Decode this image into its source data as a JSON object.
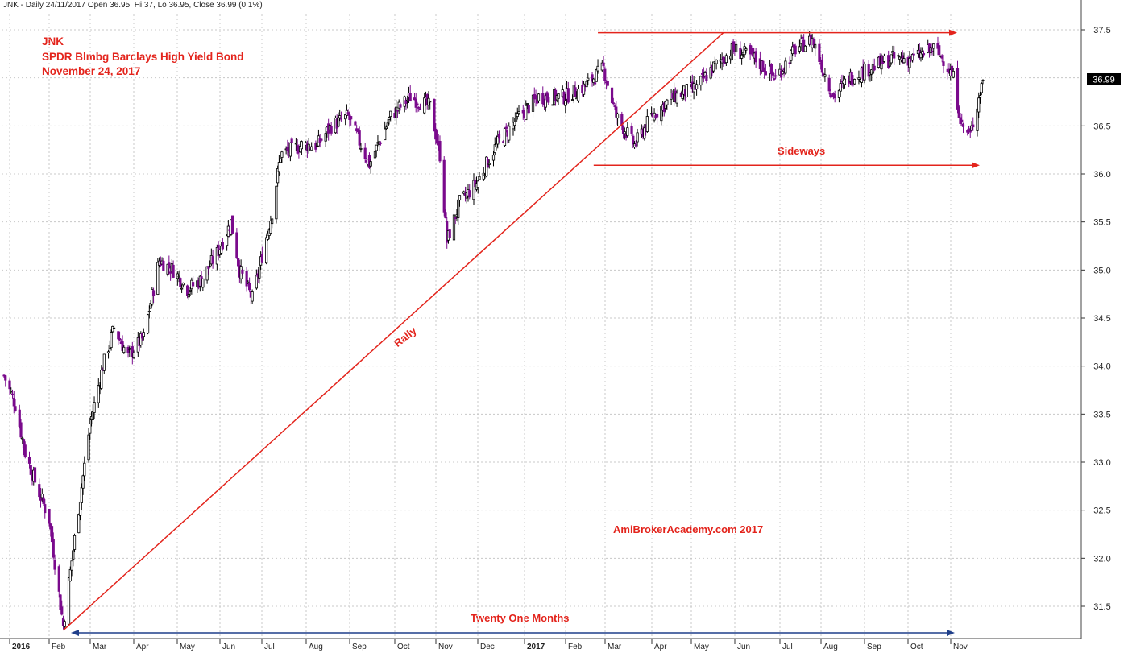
{
  "header": "JNK - Daily 24/11/2017 Open 36.95, Hi 37, Lo 36.95, Close 36.99 (0.1%)",
  "titles": [
    "JNK",
    "SPDR Blmbg Barclays High Yield Bond",
    "November 24, 2017"
  ],
  "annotations": {
    "rally": "Rally",
    "sideways": "Sideways",
    "duration": "Twenty One Months",
    "watermark": "AmiBrokerAcademy.com 2017"
  },
  "last_price_label": "36.99",
  "colors": {
    "up": "#000000",
    "down": "#7a0a8c",
    "annotation": "#e3241c",
    "duration_line": "#1f3f8a",
    "grid": "#c8c8c8",
    "price_box": "#000000"
  },
  "chart_data": {
    "type": "candlestick",
    "symbol": "JNK",
    "title": "SPDR Blmbg Barclays High Yield Bond",
    "subtitle": "November 24, 2017",
    "ylim": [
      31.2,
      37.65
    ],
    "yticks": [
      31.5,
      32.0,
      32.5,
      33.0,
      33.5,
      34.0,
      34.5,
      35.0,
      35.5,
      36.0,
      36.5,
      37.5
    ],
    "xticks": [
      "2016",
      "Feb",
      "Mar",
      "Apr",
      "May",
      "Jun",
      "Jul",
      "Aug",
      "Sep",
      "Oct",
      "Nov",
      "Dec",
      "2017",
      "Feb",
      "Mar",
      "Apr",
      "May",
      "Jun",
      "Jul",
      "Aug",
      "Sep",
      "Oct",
      "Nov"
    ],
    "grid": true,
    "last": {
      "open": 36.95,
      "high": 37.0,
      "low": 36.95,
      "close": 36.99,
      "change_pct": 0.1
    },
    "price_path": [
      [
        "2015-12-31",
        33.9
      ],
      [
        "2016-01-08",
        33.6
      ],
      [
        "2016-01-15",
        33.1
      ],
      [
        "2016-01-22",
        32.8
      ],
      [
        "2016-02-01",
        32.4
      ],
      [
        "2016-02-11",
        31.3
      ],
      [
        "2016-02-19",
        32.2
      ],
      [
        "2016-03-01",
        33.4
      ],
      [
        "2016-03-10",
        34.0
      ],
      [
        "2016-03-18",
        34.4
      ],
      [
        "2016-03-28",
        34.1
      ],
      [
        "2016-04-08",
        34.3
      ],
      [
        "2016-04-19",
        35.1
      ],
      [
        "2016-04-29",
        35.0
      ],
      [
        "2016-05-09",
        34.8
      ],
      [
        "2016-05-19",
        34.9
      ],
      [
        "2016-05-31",
        35.2
      ],
      [
        "2016-06-09",
        35.5
      ],
      [
        "2016-06-15",
        35.0
      ],
      [
        "2016-06-24",
        34.7
      ],
      [
        "2016-07-08",
        35.6
      ],
      [
        "2016-07-14",
        36.2
      ],
      [
        "2016-07-29",
        36.3
      ],
      [
        "2016-08-09",
        36.3
      ],
      [
        "2016-08-19",
        36.5
      ],
      [
        "2016-08-31",
        36.6
      ],
      [
        "2016-09-09",
        36.3
      ],
      [
        "2016-09-15",
        36.1
      ],
      [
        "2016-09-30",
        36.6
      ],
      [
        "2016-10-14",
        36.8
      ],
      [
        "2016-10-28",
        36.7
      ],
      [
        "2016-11-04",
        36.2
      ],
      [
        "2016-11-09",
        35.3
      ],
      [
        "2016-11-18",
        35.7
      ],
      [
        "2016-11-30",
        35.9
      ],
      [
        "2016-12-14",
        36.3
      ],
      [
        "2016-12-30",
        36.6
      ],
      [
        "2017-01-13",
        36.8
      ],
      [
        "2017-01-31",
        36.8
      ],
      [
        "2017-02-14",
        36.9
      ],
      [
        "2017-02-28",
        37.1
      ],
      [
        "2017-03-09",
        36.6
      ],
      [
        "2017-03-22",
        36.3
      ],
      [
        "2017-04-03",
        36.6
      ],
      [
        "2017-04-18",
        36.8
      ],
      [
        "2017-05-05",
        36.9
      ],
      [
        "2017-05-16",
        37.1
      ],
      [
        "2017-05-31",
        37.3
      ],
      [
        "2017-06-15",
        37.2
      ],
      [
        "2017-06-30",
        37.0
      ],
      [
        "2017-07-14",
        37.3
      ],
      [
        "2017-07-26",
        37.4
      ],
      [
        "2017-08-10",
        36.8
      ],
      [
        "2017-08-21",
        37.0
      ],
      [
        "2017-09-05",
        37.1
      ],
      [
        "2017-09-20",
        37.2
      ],
      [
        "2017-10-05",
        37.2
      ],
      [
        "2017-10-20",
        37.3
      ],
      [
        "2017-10-27",
        37.2
      ],
      [
        "2017-11-03",
        37.0
      ],
      [
        "2017-11-09",
        36.5
      ],
      [
        "2017-11-15",
        36.4
      ],
      [
        "2017-11-24",
        36.99
      ]
    ]
  }
}
